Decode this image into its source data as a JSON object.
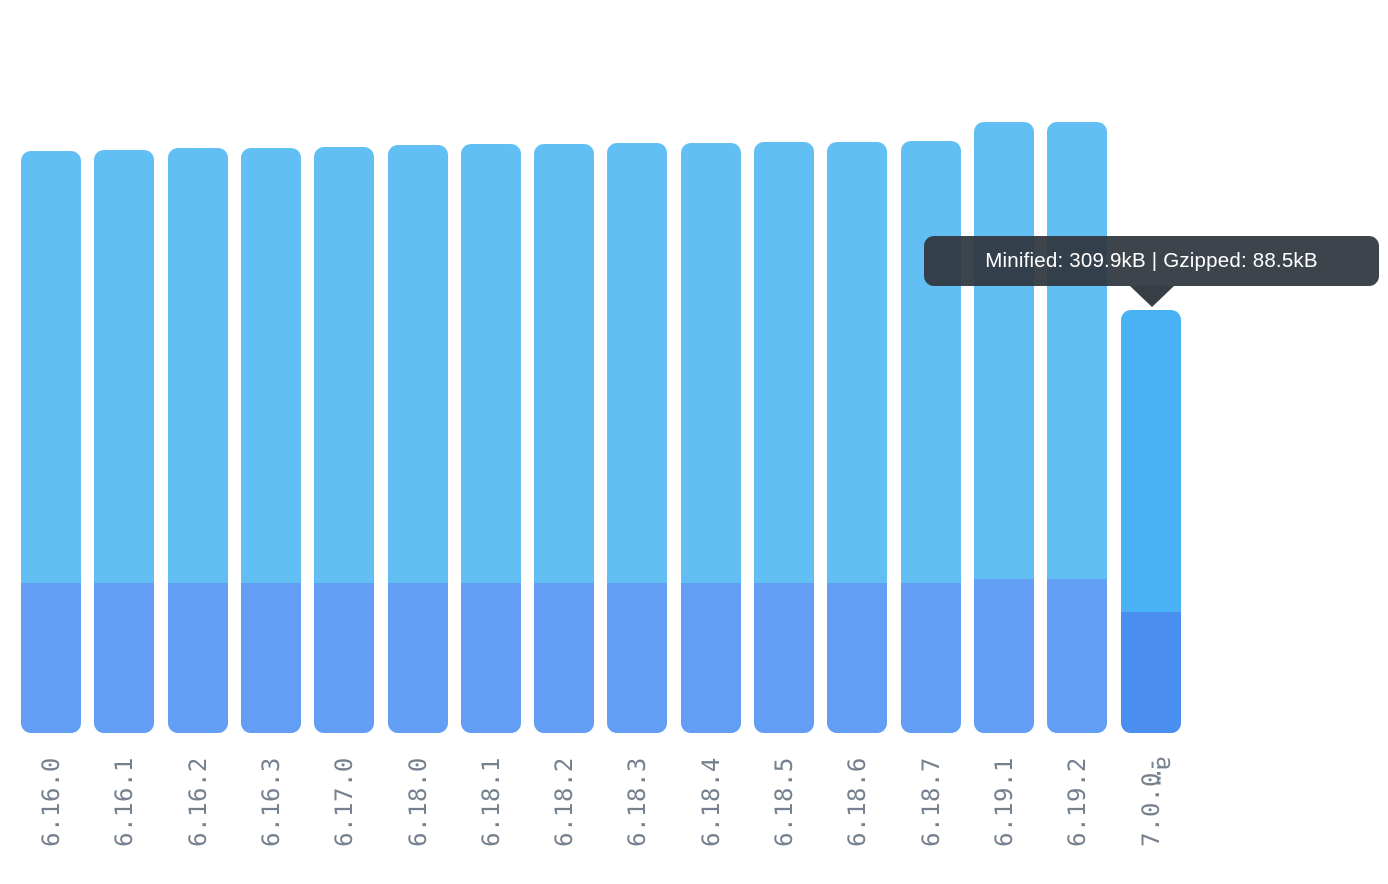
{
  "chart_data": {
    "type": "bar",
    "variant": "overlay-stacked",
    "title": "",
    "xlabel": "",
    "ylabel": "",
    "unit": "kB",
    "legend": "none",
    "grid": false,
    "categories": [
      "6.16.0",
      "6.16.1",
      "6.16.2",
      "6.16.3",
      "6.17.0",
      "6.18.0",
      "6.18.1",
      "6.18.2",
      "6.18.3",
      "6.18.4",
      "6.18.5",
      "6.18.6",
      "6.18.7",
      "6.19.1",
      "6.19.2",
      "7.0.0-a…"
    ],
    "series": [
      {
        "name": "Minified",
        "color": "#62BFF4",
        "highlight_color": "#49B2F4",
        "values": [
          426.4,
          427.1,
          428.6,
          428.6,
          429.3,
          430.8,
          431.5,
          431.5,
          432.3,
          432.3,
          433.0,
          433.0,
          433.7,
          447.7,
          447.7,
          309.9
        ]
      },
      {
        "name": "Gzipped",
        "color": "#619EF4",
        "highlight_color": "#4A8FF0",
        "values": [
          109.9,
          109.9,
          109.9,
          109.9,
          109.9,
          109.9,
          109.9,
          109.9,
          109.9,
          109.9,
          109.9,
          109.9,
          109.9,
          112.8,
          112.8,
          88.5
        ]
      }
    ],
    "highlighted_index": 15,
    "last_label_lines": [
      "7.0.0-",
      "a…"
    ],
    "axis_label_color": "#76818F",
    "tooltip": {
      "text": "Minified: 309.9kB | Gzipped: 88.5kB",
      "target_category": "7.0.0-a…",
      "background": "rgba(47,54,61,0.93)",
      "text_color": "#FFFFFF"
    }
  }
}
